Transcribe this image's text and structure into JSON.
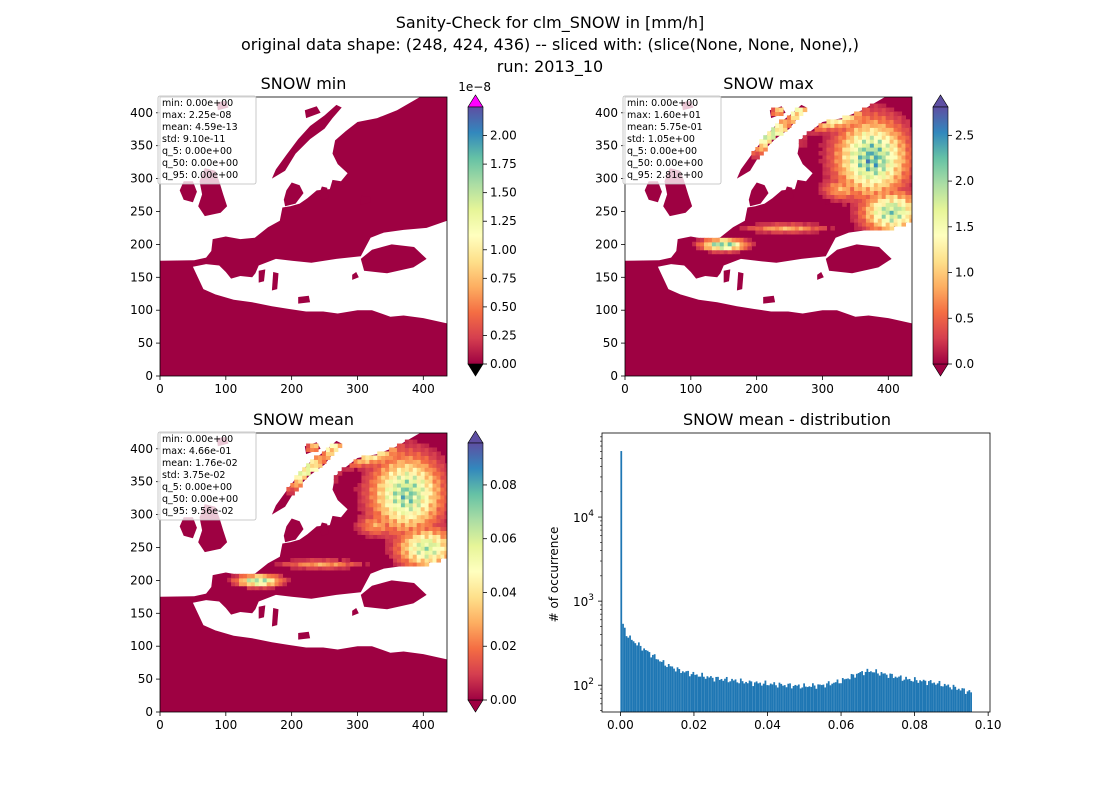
{
  "figure": {
    "title_lines": [
      "Sanity-Check for clm_SNOW in [mm/h]",
      "original data shape: (248, 424, 436) -- sliced with: (slice(None, None, None),)",
      "run: 2013_10"
    ]
  },
  "colors": {
    "spectral_r": [
      "#9e0142",
      "#d53e4f",
      "#f46d43",
      "#fdae61",
      "#fee08b",
      "#ffffbf",
      "#e6f598",
      "#abdda4",
      "#66c2a5",
      "#3288bd",
      "#5e4fa2"
    ],
    "over_min": "#ff00ff",
    "under": "#000000",
    "hist_bar": "#1f77b4"
  },
  "chart_data": [
    {
      "type": "heatmap",
      "title": "SNOW min",
      "field": "min",
      "xlim": [
        0,
        436
      ],
      "ylim": [
        0,
        424
      ],
      "xticks": [
        "0",
        "100",
        "200",
        "300",
        "400"
      ],
      "yticks": [
        "0",
        "50",
        "100",
        "150",
        "200",
        "250",
        "300",
        "350",
        "400"
      ],
      "colorbar": {
        "min": 0,
        "max": 2.25e-08,
        "offset_label": "1e−8",
        "ticks": [
          "0.00",
          "0.25",
          "0.50",
          "0.75",
          "1.00",
          "1.25",
          "1.50",
          "1.75",
          "2.00"
        ],
        "extend": "both"
      },
      "stats": [
        "min: 0.00e+00",
        "max: 2.25e-08",
        "mean: 4.59e-13",
        "std: 9.10e-11",
        "q_5: 0.00e+00",
        "q_50: 0.00e+00",
        "q_95: 0.00e+00"
      ]
    },
    {
      "type": "heatmap",
      "title": "SNOW max",
      "field": "max",
      "xlim": [
        0,
        436
      ],
      "ylim": [
        0,
        424
      ],
      "xticks": [
        "0",
        "100",
        "200",
        "300",
        "400"
      ],
      "yticks": [
        "0",
        "50",
        "100",
        "150",
        "200",
        "250",
        "300",
        "350",
        "400"
      ],
      "colorbar": {
        "min": 0,
        "max": 2.81,
        "ticks": [
          "0.0",
          "0.5",
          "1.0",
          "1.5",
          "2.0",
          "2.5"
        ],
        "extend": "both"
      },
      "stats": [
        "min: 0.00e+00",
        "max: 1.60e+01",
        "mean: 5.75e-01",
        "std: 1.05e+00",
        "q_5: 0.00e+00",
        "q_50: 0.00e+00",
        "q_95: 2.81e+00"
      ]
    },
    {
      "type": "heatmap",
      "title": "SNOW mean",
      "field": "mean",
      "xlim": [
        0,
        436
      ],
      "ylim": [
        0,
        424
      ],
      "xticks": [
        "0",
        "100",
        "200",
        "300",
        "400"
      ],
      "yticks": [
        "0",
        "50",
        "100",
        "150",
        "200",
        "250",
        "300",
        "350",
        "400"
      ],
      "colorbar": {
        "min": 0,
        "max": 0.0956,
        "ticks": [
          "0.00",
          "0.02",
          "0.04",
          "0.06",
          "0.08"
        ],
        "extend": "both"
      },
      "stats": [
        "min: 0.00e+00",
        "max: 4.66e-01",
        "mean: 1.76e-02",
        "std: 3.75e-02",
        "q_5: 0.00e+00",
        "q_50: 0.00e+00",
        "q_95: 9.56e-02"
      ]
    },
    {
      "type": "bar",
      "title": "SNOW mean - distribution",
      "ylabel": "# of occurrence",
      "xlabel": "",
      "yscale": "log",
      "xlim": [
        -0.005,
        0.1005
      ],
      "ylim": [
        48,
        100000
      ],
      "xticks": [
        "0.00",
        "0.02",
        "0.04",
        "0.06",
        "0.08",
        "0.10"
      ],
      "yticks": [
        "10^2",
        "10^3",
        "10^4"
      ],
      "bins": {
        "start": 0,
        "end": 0.0956,
        "count": 200
      },
      "profile": [
        [
          0.0,
          61000
        ],
        [
          0.00048,
          580
        ],
        [
          0.001,
          480
        ],
        [
          0.0015,
          420
        ],
        [
          0.002,
          390
        ],
        [
          0.003,
          350
        ],
        [
          0.005,
          300
        ],
        [
          0.008,
          240
        ],
        [
          0.012,
          180
        ],
        [
          0.016,
          150
        ],
        [
          0.02,
          135
        ],
        [
          0.025,
          122
        ],
        [
          0.03,
          115
        ],
        [
          0.035,
          108
        ],
        [
          0.04,
          104
        ],
        [
          0.045,
          100
        ],
        [
          0.05,
          97
        ],
        [
          0.055,
          100
        ],
        [
          0.06,
          112
        ],
        [
          0.065,
          140
        ],
        [
          0.068,
          148
        ],
        [
          0.072,
          135
        ],
        [
          0.078,
          118
        ],
        [
          0.085,
          108
        ],
        [
          0.09,
          96
        ],
        [
          0.0956,
          82
        ]
      ]
    }
  ]
}
